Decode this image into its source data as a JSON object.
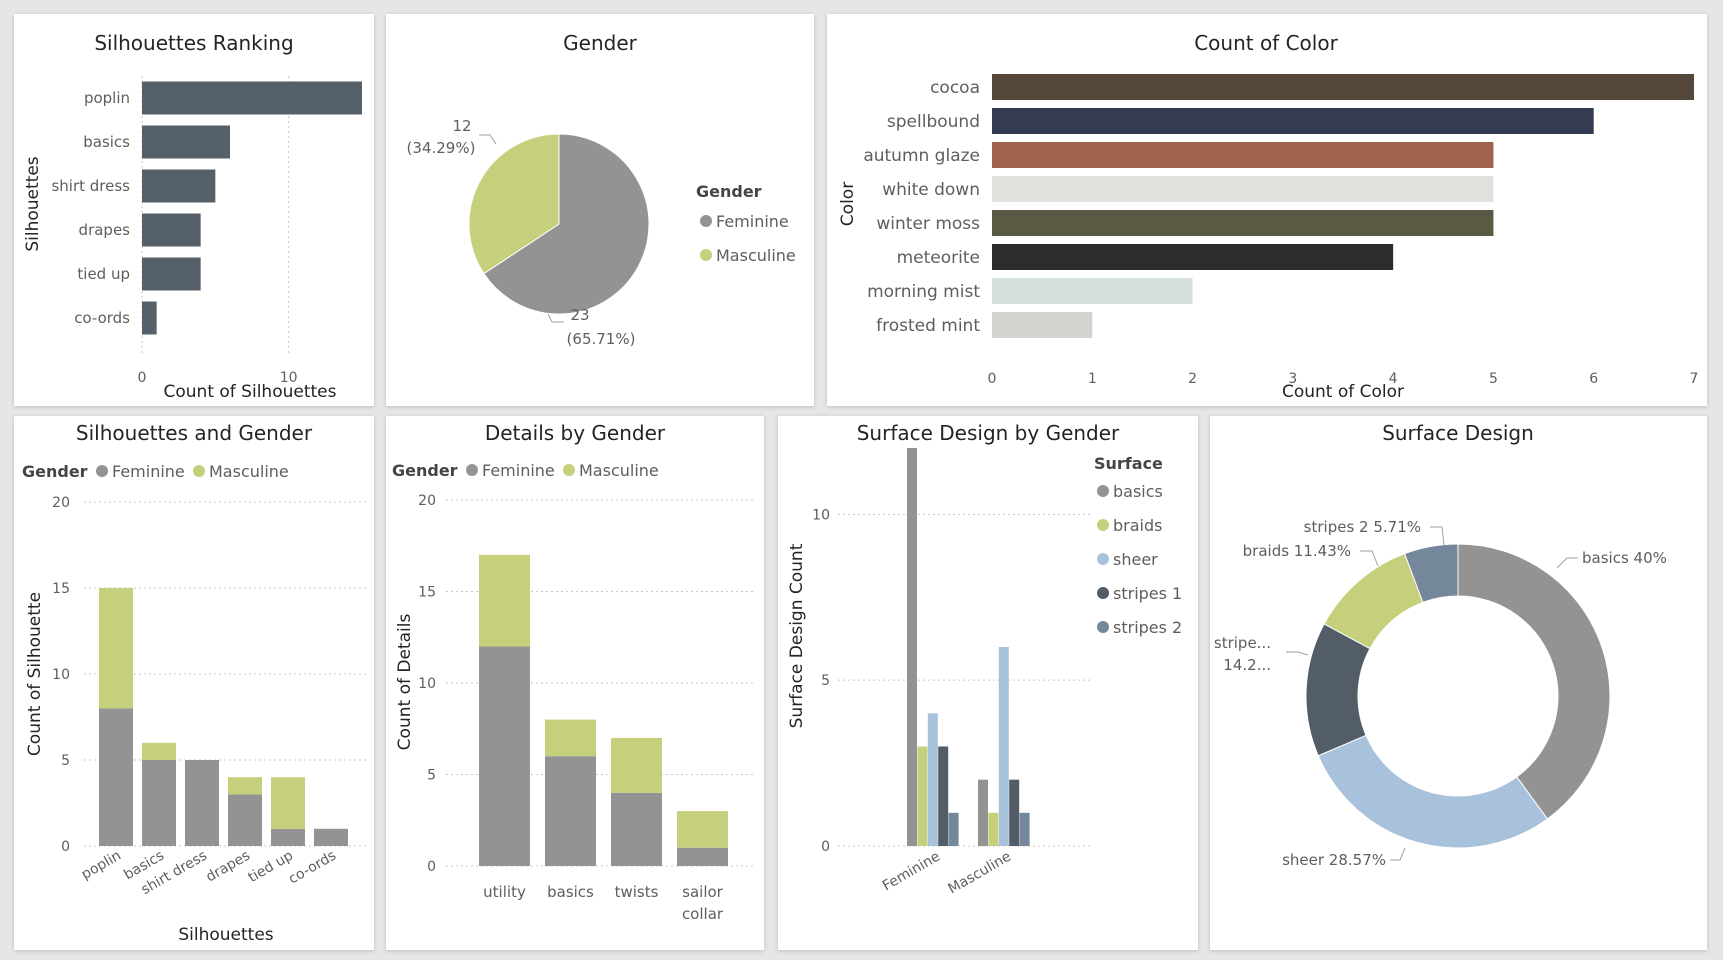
{
  "colors": {
    "feminine": "#939393",
    "masculine": "#c6cf7b",
    "slate": "#56606a",
    "basics": "#939393",
    "braids": "#c6cf7b",
    "sheer": "#a9c2dc",
    "stripes1": "#525d68",
    "stripes2": "#75879a"
  },
  "chart_data": [
    {
      "id": "silhouettes_ranking",
      "type": "bar",
      "orientation": "horizontal",
      "title": "Silhouettes Ranking",
      "xlabel": "Count of Silhouettes",
      "ylabel": "Silhouettes",
      "categories": [
        "poplin",
        "basics",
        "shirt dress",
        "drapes",
        "tied up",
        "co-ords"
      ],
      "values": [
        15,
        6,
        5,
        4,
        4,
        1
      ],
      "xlim": [
        0,
        15
      ],
      "xticks": [
        "0",
        "10"
      ],
      "grid": true
    },
    {
      "id": "gender_pie",
      "type": "pie",
      "title": "Gender",
      "legend_title": "Gender",
      "legend_position": "right",
      "slices": [
        {
          "name": "Feminine",
          "value": 23,
          "count_label": "23",
          "pct_label": "(65.71%)"
        },
        {
          "name": "Masculine",
          "value": 12,
          "count_label": "12",
          "pct_label": "(34.29%)"
        }
      ]
    },
    {
      "id": "count_of_color",
      "type": "bar",
      "orientation": "horizontal",
      "title": "Count of Color",
      "xlabel": "Count of Color",
      "ylabel": "Color",
      "categories": [
        "cocoa",
        "spellbound",
        "autumn glaze",
        "white down",
        "winter moss",
        "meteorite",
        "morning mist",
        "frosted mint"
      ],
      "values": [
        7,
        6,
        5,
        5,
        5,
        4,
        2,
        1
      ],
      "bar_colors": [
        "#55473a",
        "#343b52",
        "#a1624d",
        "#e3e1dc",
        "#595944",
        "#2c2c2f",
        "#d5e0dc",
        "#d2d5ce"
      ],
      "xlim": [
        0,
        7
      ],
      "xticks": [
        "0",
        "1",
        "2",
        "3",
        "4",
        "5",
        "6",
        "7"
      ]
    },
    {
      "id": "silhouettes_gender",
      "type": "bar",
      "stacked": true,
      "title": "Silhouettes and Gender",
      "legend_title": "Gender",
      "legend_position": "top-left",
      "xlabel": "Silhouettes",
      "ylabel": "Count of Silhouette",
      "categories": [
        "poplin",
        "basics",
        "shirt dress",
        "drapes",
        "tied up",
        "co-ords"
      ],
      "series": [
        {
          "name": "Feminine",
          "values": [
            8,
            5,
            5,
            3,
            1,
            1
          ]
        },
        {
          "name": "Masculine",
          "values": [
            7,
            1,
            0,
            1,
            3,
            0
          ]
        }
      ],
      "ylim": [
        0,
        20
      ],
      "yticks": [
        "0",
        "5",
        "10",
        "15",
        "20"
      ],
      "grid": true
    },
    {
      "id": "details_gender",
      "type": "bar",
      "stacked": true,
      "title": "Details by Gender",
      "legend_title": "Gender",
      "legend_position": "top-left",
      "xlabel": "",
      "ylabel": "Count of Details",
      "categories": [
        "utility",
        "basics",
        "twists",
        "sailor collar"
      ],
      "category_lines": [
        [
          "utility"
        ],
        [
          "basics"
        ],
        [
          "twists"
        ],
        [
          "sailor",
          "collar"
        ]
      ],
      "series": [
        {
          "name": "Feminine",
          "values": [
            12,
            6,
            4,
            1
          ]
        },
        {
          "name": "Masculine",
          "values": [
            5,
            2,
            3,
            2
          ]
        }
      ],
      "ylim": [
        0,
        20
      ],
      "yticks": [
        "0",
        "5",
        "10",
        "15",
        "20"
      ],
      "grid": true
    },
    {
      "id": "surface_gender",
      "type": "bar",
      "grouped": true,
      "title": "Surface Design by Gender",
      "legend_title": "Surface",
      "legend_position": "right",
      "xlabel": "",
      "ylabel": "Surface Design Count",
      "categories": [
        "Feminine",
        "Masculine"
      ],
      "series": [
        {
          "name": "basics",
          "values": [
            12,
            2
          ]
        },
        {
          "name": "braids",
          "values": [
            3,
            1
          ]
        },
        {
          "name": "sheer",
          "values": [
            4,
            6
          ]
        },
        {
          "name": "stripes 1",
          "values": [
            3,
            2
          ]
        },
        {
          "name": "stripes 2",
          "values": [
            1,
            1
          ]
        }
      ],
      "ylim": [
        0,
        12
      ],
      "yticks": [
        "0",
        "5",
        "10"
      ],
      "grid": true
    },
    {
      "id": "surface_design",
      "type": "pie",
      "donut": true,
      "title": "Surface Design",
      "slices": [
        {
          "name": "basics",
          "value": 40,
          "label": "basics 40%"
        },
        {
          "name": "sheer",
          "value": 28.57,
          "label": "sheer 28.57%"
        },
        {
          "name": "stripes 1",
          "value": 14.29,
          "label": "stripe...",
          "label2": "14.2..."
        },
        {
          "name": "braids",
          "value": 11.43,
          "label": "braids 11.43%"
        },
        {
          "name": "stripes 2",
          "value": 5.71,
          "label": "stripes 2 5.71%"
        }
      ]
    }
  ]
}
